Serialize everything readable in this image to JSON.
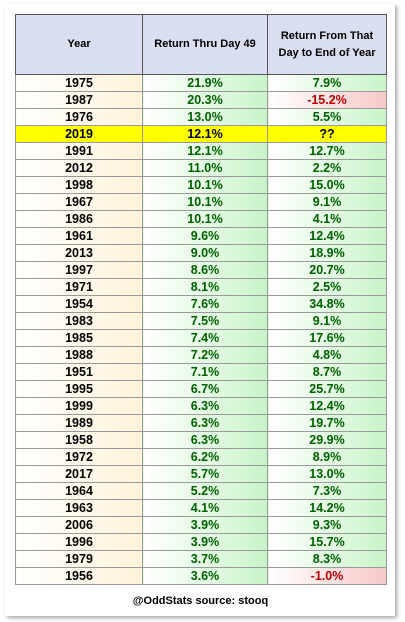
{
  "chart_data": {
    "type": "table",
    "columns": [
      "Year",
      "Return Thru Day 49",
      "Return From That Day to End of Year"
    ],
    "rows": [
      {
        "year": "1975",
        "thru_day_49": "21.9%",
        "rest_of_year": "7.9%"
      },
      {
        "year": "1987",
        "thru_day_49": "20.3%",
        "rest_of_year": "-15.2%"
      },
      {
        "year": "1976",
        "thru_day_49": "13.0%",
        "rest_of_year": "5.5%"
      },
      {
        "year": "2019",
        "thru_day_49": "12.1%",
        "rest_of_year": "??",
        "highlight": true
      },
      {
        "year": "1991",
        "thru_day_49": "12.1%",
        "rest_of_year": "12.7%"
      },
      {
        "year": "2012",
        "thru_day_49": "11.0%",
        "rest_of_year": "2.2%"
      },
      {
        "year": "1998",
        "thru_day_49": "10.1%",
        "rest_of_year": "15.0%"
      },
      {
        "year": "1967",
        "thru_day_49": "10.1%",
        "rest_of_year": "9.1%"
      },
      {
        "year": "1986",
        "thru_day_49": "10.1%",
        "rest_of_year": "4.1%"
      },
      {
        "year": "1961",
        "thru_day_49": "9.6%",
        "rest_of_year": "12.4%"
      },
      {
        "year": "2013",
        "thru_day_49": "9.0%",
        "rest_of_year": "18.9%"
      },
      {
        "year": "1997",
        "thru_day_49": "8.6%",
        "rest_of_year": "20.7%"
      },
      {
        "year": "1971",
        "thru_day_49": "8.1%",
        "rest_of_year": "2.5%"
      },
      {
        "year": "1954",
        "thru_day_49": "7.6%",
        "rest_of_year": "34.8%"
      },
      {
        "year": "1983",
        "thru_day_49": "7.5%",
        "rest_of_year": "9.1%"
      },
      {
        "year": "1985",
        "thru_day_49": "7.4%",
        "rest_of_year": "17.6%"
      },
      {
        "year": "1988",
        "thru_day_49": "7.2%",
        "rest_of_year": "4.8%"
      },
      {
        "year": "1951",
        "thru_day_49": "7.1%",
        "rest_of_year": "8.7%"
      },
      {
        "year": "1995",
        "thru_day_49": "6.7%",
        "rest_of_year": "25.7%"
      },
      {
        "year": "1999",
        "thru_day_49": "6.3%",
        "rest_of_year": "12.4%"
      },
      {
        "year": "1989",
        "thru_day_49": "6.3%",
        "rest_of_year": "19.7%"
      },
      {
        "year": "1958",
        "thru_day_49": "6.3%",
        "rest_of_year": "29.9%"
      },
      {
        "year": "1972",
        "thru_day_49": "6.2%",
        "rest_of_year": "8.9%"
      },
      {
        "year": "2017",
        "thru_day_49": "5.7%",
        "rest_of_year": "13.0%"
      },
      {
        "year": "1964",
        "thru_day_49": "5.2%",
        "rest_of_year": "7.3%"
      },
      {
        "year": "1963",
        "thru_day_49": "4.1%",
        "rest_of_year": "14.2%"
      },
      {
        "year": "2006",
        "thru_day_49": "3.9%",
        "rest_of_year": "9.3%"
      },
      {
        "year": "1996",
        "thru_day_49": "3.9%",
        "rest_of_year": "15.7%"
      },
      {
        "year": "1979",
        "thru_day_49": "3.7%",
        "rest_of_year": "8.3%"
      },
      {
        "year": "1956",
        "thru_day_49": "3.6%",
        "rest_of_year": "-1.0%"
      }
    ],
    "footer": "@OddStats   source: stooq",
    "colors": {
      "header_fill": "#d9dff0",
      "year_fill": "#fff3d9",
      "positive_fill": "#c9f4c9",
      "positive_text": "#006100",
      "negative_fill": "#f8c8c8",
      "negative_text": "#c00000",
      "highlight_fill": "#ffff00"
    }
  }
}
